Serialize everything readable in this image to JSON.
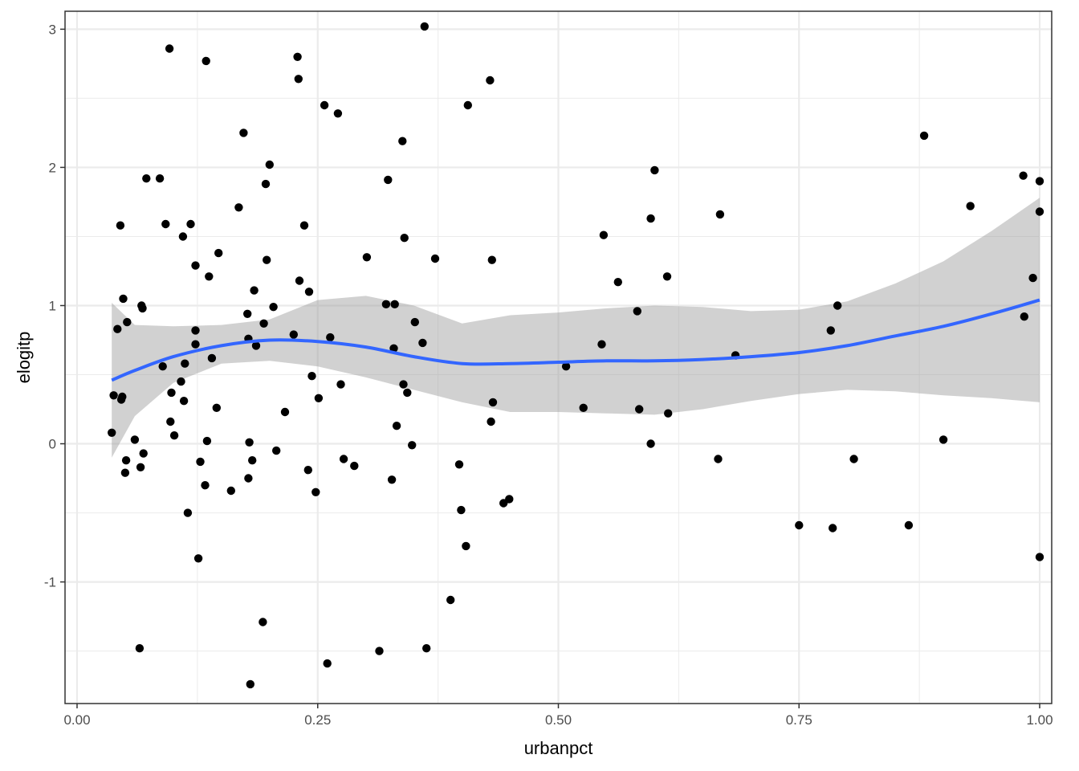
{
  "chart_data": {
    "type": "scatter",
    "xlabel": "urbanpct",
    "ylabel": "elogitp",
    "xlim": [
      -0.0125,
      1.0125
    ],
    "ylim": [
      -1.88,
      3.13
    ],
    "x_ticks": [
      0.0,
      0.25,
      0.5,
      0.75,
      1.0
    ],
    "x_tick_labels": [
      "0.00",
      "0.25",
      "0.50",
      "0.75",
      "1.00"
    ],
    "y_ticks": [
      -1,
      0,
      1,
      2,
      3
    ],
    "y_tick_labels": [
      "-1",
      "0",
      "1",
      "2",
      "3"
    ],
    "grid": true,
    "colors": {
      "points": "#000000",
      "smooth_line": "#3366ff",
      "ribbon": "#999999",
      "grid": "#ebebeb",
      "panel_border": "#333333"
    },
    "points": [
      [
        0.036,
        0.08
      ],
      [
        0.038,
        0.35
      ],
      [
        0.042,
        0.83
      ],
      [
        0.045,
        1.58
      ],
      [
        0.046,
        0.32
      ],
      [
        0.047,
        0.34
      ],
      [
        0.048,
        1.05
      ],
      [
        0.05,
        -0.21
      ],
      [
        0.051,
        -0.12
      ],
      [
        0.052,
        0.88
      ],
      [
        0.06,
        0.03
      ],
      [
        0.065,
        -1.48
      ],
      [
        0.066,
        -0.17
      ],
      [
        0.067,
        1.0
      ],
      [
        0.068,
        0.98
      ],
      [
        0.069,
        -0.07
      ],
      [
        0.072,
        1.92
      ],
      [
        0.086,
        1.92
      ],
      [
        0.089,
        0.56
      ],
      [
        0.092,
        1.59
      ],
      [
        0.096,
        2.86
      ],
      [
        0.097,
        0.16
      ],
      [
        0.098,
        0.37
      ],
      [
        0.101,
        0.06
      ],
      [
        0.108,
        0.45
      ],
      [
        0.11,
        1.5
      ],
      [
        0.111,
        0.31
      ],
      [
        0.112,
        0.58
      ],
      [
        0.115,
        -0.5
      ],
      [
        0.118,
        1.59
      ],
      [
        0.123,
        1.29
      ],
      [
        0.123,
        0.72
      ],
      [
        0.123,
        0.82
      ],
      [
        0.126,
        -0.83
      ],
      [
        0.128,
        -0.13
      ],
      [
        0.133,
        -0.3
      ],
      [
        0.134,
        2.77
      ],
      [
        0.135,
        0.02
      ],
      [
        0.137,
        1.21
      ],
      [
        0.14,
        0.62
      ],
      [
        0.145,
        0.26
      ],
      [
        0.147,
        1.38
      ],
      [
        0.16,
        -0.34
      ],
      [
        0.168,
        1.71
      ],
      [
        0.173,
        2.25
      ],
      [
        0.177,
        0.94
      ],
      [
        0.178,
        0.76
      ],
      [
        0.179,
        0.01
      ],
      [
        0.178,
        -0.25
      ],
      [
        0.18,
        -1.74
      ],
      [
        0.182,
        -0.12
      ],
      [
        0.184,
        1.11
      ],
      [
        0.186,
        0.71
      ],
      [
        0.193,
        -1.29
      ],
      [
        0.194,
        0.87
      ],
      [
        0.196,
        1.88
      ],
      [
        0.197,
        1.33
      ],
      [
        0.2,
        2.02
      ],
      [
        0.204,
        0.99
      ],
      [
        0.207,
        -0.05
      ],
      [
        0.216,
        0.23
      ],
      [
        0.225,
        0.79
      ],
      [
        0.229,
        2.8
      ],
      [
        0.23,
        2.64
      ],
      [
        0.231,
        1.18
      ],
      [
        0.236,
        1.58
      ],
      [
        0.24,
        -0.19
      ],
      [
        0.241,
        1.1
      ],
      [
        0.244,
        0.49
      ],
      [
        0.248,
        -0.35
      ],
      [
        0.251,
        0.33
      ],
      [
        0.257,
        2.45
      ],
      [
        0.26,
        -1.59
      ],
      [
        0.263,
        0.77
      ],
      [
        0.271,
        2.39
      ],
      [
        0.274,
        0.43
      ],
      [
        0.277,
        -0.11
      ],
      [
        0.288,
        -0.16
      ],
      [
        0.301,
        1.35
      ],
      [
        0.314,
        -1.5
      ],
      [
        0.321,
        1.01
      ],
      [
        0.323,
        1.91
      ],
      [
        0.327,
        -0.26
      ],
      [
        0.329,
        0.69
      ],
      [
        0.33,
        1.01
      ],
      [
        0.332,
        0.13
      ],
      [
        0.338,
        2.19
      ],
      [
        0.339,
        0.43
      ],
      [
        0.34,
        1.49
      ],
      [
        0.343,
        0.37
      ],
      [
        0.348,
        -0.01
      ],
      [
        0.351,
        0.88
      ],
      [
        0.359,
        0.73
      ],
      [
        0.361,
        3.02
      ],
      [
        0.363,
        -1.48
      ],
      [
        0.372,
        1.34
      ],
      [
        0.388,
        -1.13
      ],
      [
        0.397,
        -0.15
      ],
      [
        0.399,
        -0.48
      ],
      [
        0.404,
        -0.74
      ],
      [
        0.406,
        2.45
      ],
      [
        0.429,
        2.63
      ],
      [
        0.43,
        0.16
      ],
      [
        0.431,
        1.33
      ],
      [
        0.432,
        0.3
      ],
      [
        0.443,
        -0.43
      ],
      [
        0.449,
        -0.4
      ],
      [
        0.508,
        0.56
      ],
      [
        0.526,
        0.26
      ],
      [
        0.545,
        0.72
      ],
      [
        0.547,
        1.51
      ],
      [
        0.562,
        1.17
      ],
      [
        0.582,
        0.96
      ],
      [
        0.584,
        0.25
      ],
      [
        0.596,
        1.63
      ],
      [
        0.596,
        0.0
      ],
      [
        0.6,
        1.98
      ],
      [
        0.613,
        1.21
      ],
      [
        0.614,
        0.22
      ],
      [
        0.666,
        -0.11
      ],
      [
        0.668,
        1.66
      ],
      [
        0.684,
        0.64
      ],
      [
        0.75,
        -0.59
      ],
      [
        0.783,
        0.82
      ],
      [
        0.785,
        -0.61
      ],
      [
        0.79,
        1.0
      ],
      [
        0.807,
        -0.11
      ],
      [
        0.864,
        -0.59
      ],
      [
        0.88,
        2.23
      ],
      [
        0.9,
        0.03
      ],
      [
        0.928,
        1.72
      ],
      [
        0.983,
        1.94
      ],
      [
        0.984,
        0.92
      ],
      [
        0.993,
        1.2
      ],
      [
        1.0,
        1.9
      ],
      [
        1.0,
        1.68
      ],
      [
        1.0,
        -0.82
      ]
    ],
    "smooth": {
      "x": [
        0.036,
        0.06,
        0.1,
        0.15,
        0.2,
        0.25,
        0.3,
        0.35,
        0.4,
        0.45,
        0.5,
        0.55,
        0.6,
        0.65,
        0.7,
        0.75,
        0.8,
        0.85,
        0.9,
        0.95,
        1.0
      ],
      "y": [
        0.46,
        0.53,
        0.63,
        0.71,
        0.75,
        0.74,
        0.7,
        0.63,
        0.58,
        0.58,
        0.59,
        0.6,
        0.6,
        0.61,
        0.63,
        0.66,
        0.71,
        0.78,
        0.85,
        0.94,
        1.04
      ],
      "ymin": [
        -0.1,
        0.2,
        0.44,
        0.58,
        0.6,
        0.56,
        0.48,
        0.39,
        0.3,
        0.23,
        0.23,
        0.22,
        0.21,
        0.25,
        0.31,
        0.36,
        0.39,
        0.38,
        0.35,
        0.33,
        0.3
      ],
      "ymax": [
        1.02,
        0.86,
        0.85,
        0.86,
        0.9,
        1.04,
        1.07,
        1.0,
        0.87,
        0.93,
        0.95,
        0.98,
        1.0,
        0.99,
        0.96,
        0.97,
        1.03,
        1.16,
        1.32,
        1.54,
        1.78
      ]
    }
  }
}
